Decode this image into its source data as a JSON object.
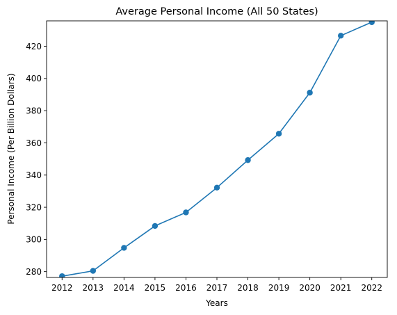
{
  "chart_data": {
    "type": "line",
    "title": "Average Personal Income (All 50 States)",
    "xlabel": "Years",
    "ylabel": "Personal Income (Per Billion Dollars)",
    "x": [
      2012,
      2013,
      2014,
      2015,
      2016,
      2017,
      2018,
      2019,
      2020,
      2021,
      2022
    ],
    "series": [
      {
        "values": [
          277.2,
          280.5,
          294.8,
          308.4,
          316.8,
          332.2,
          349.3,
          365.7,
          391.2,
          426.6,
          435.0
        ],
        "color": "#1f77b4",
        "marker": "circle"
      }
    ],
    "yticks": [
      280,
      300,
      320,
      340,
      360,
      380,
      400,
      420
    ],
    "ylim": [
      276.4,
      435.8
    ],
    "xlim": [
      2011.5,
      2022.5
    ],
    "grid": false,
    "legend": "none"
  }
}
